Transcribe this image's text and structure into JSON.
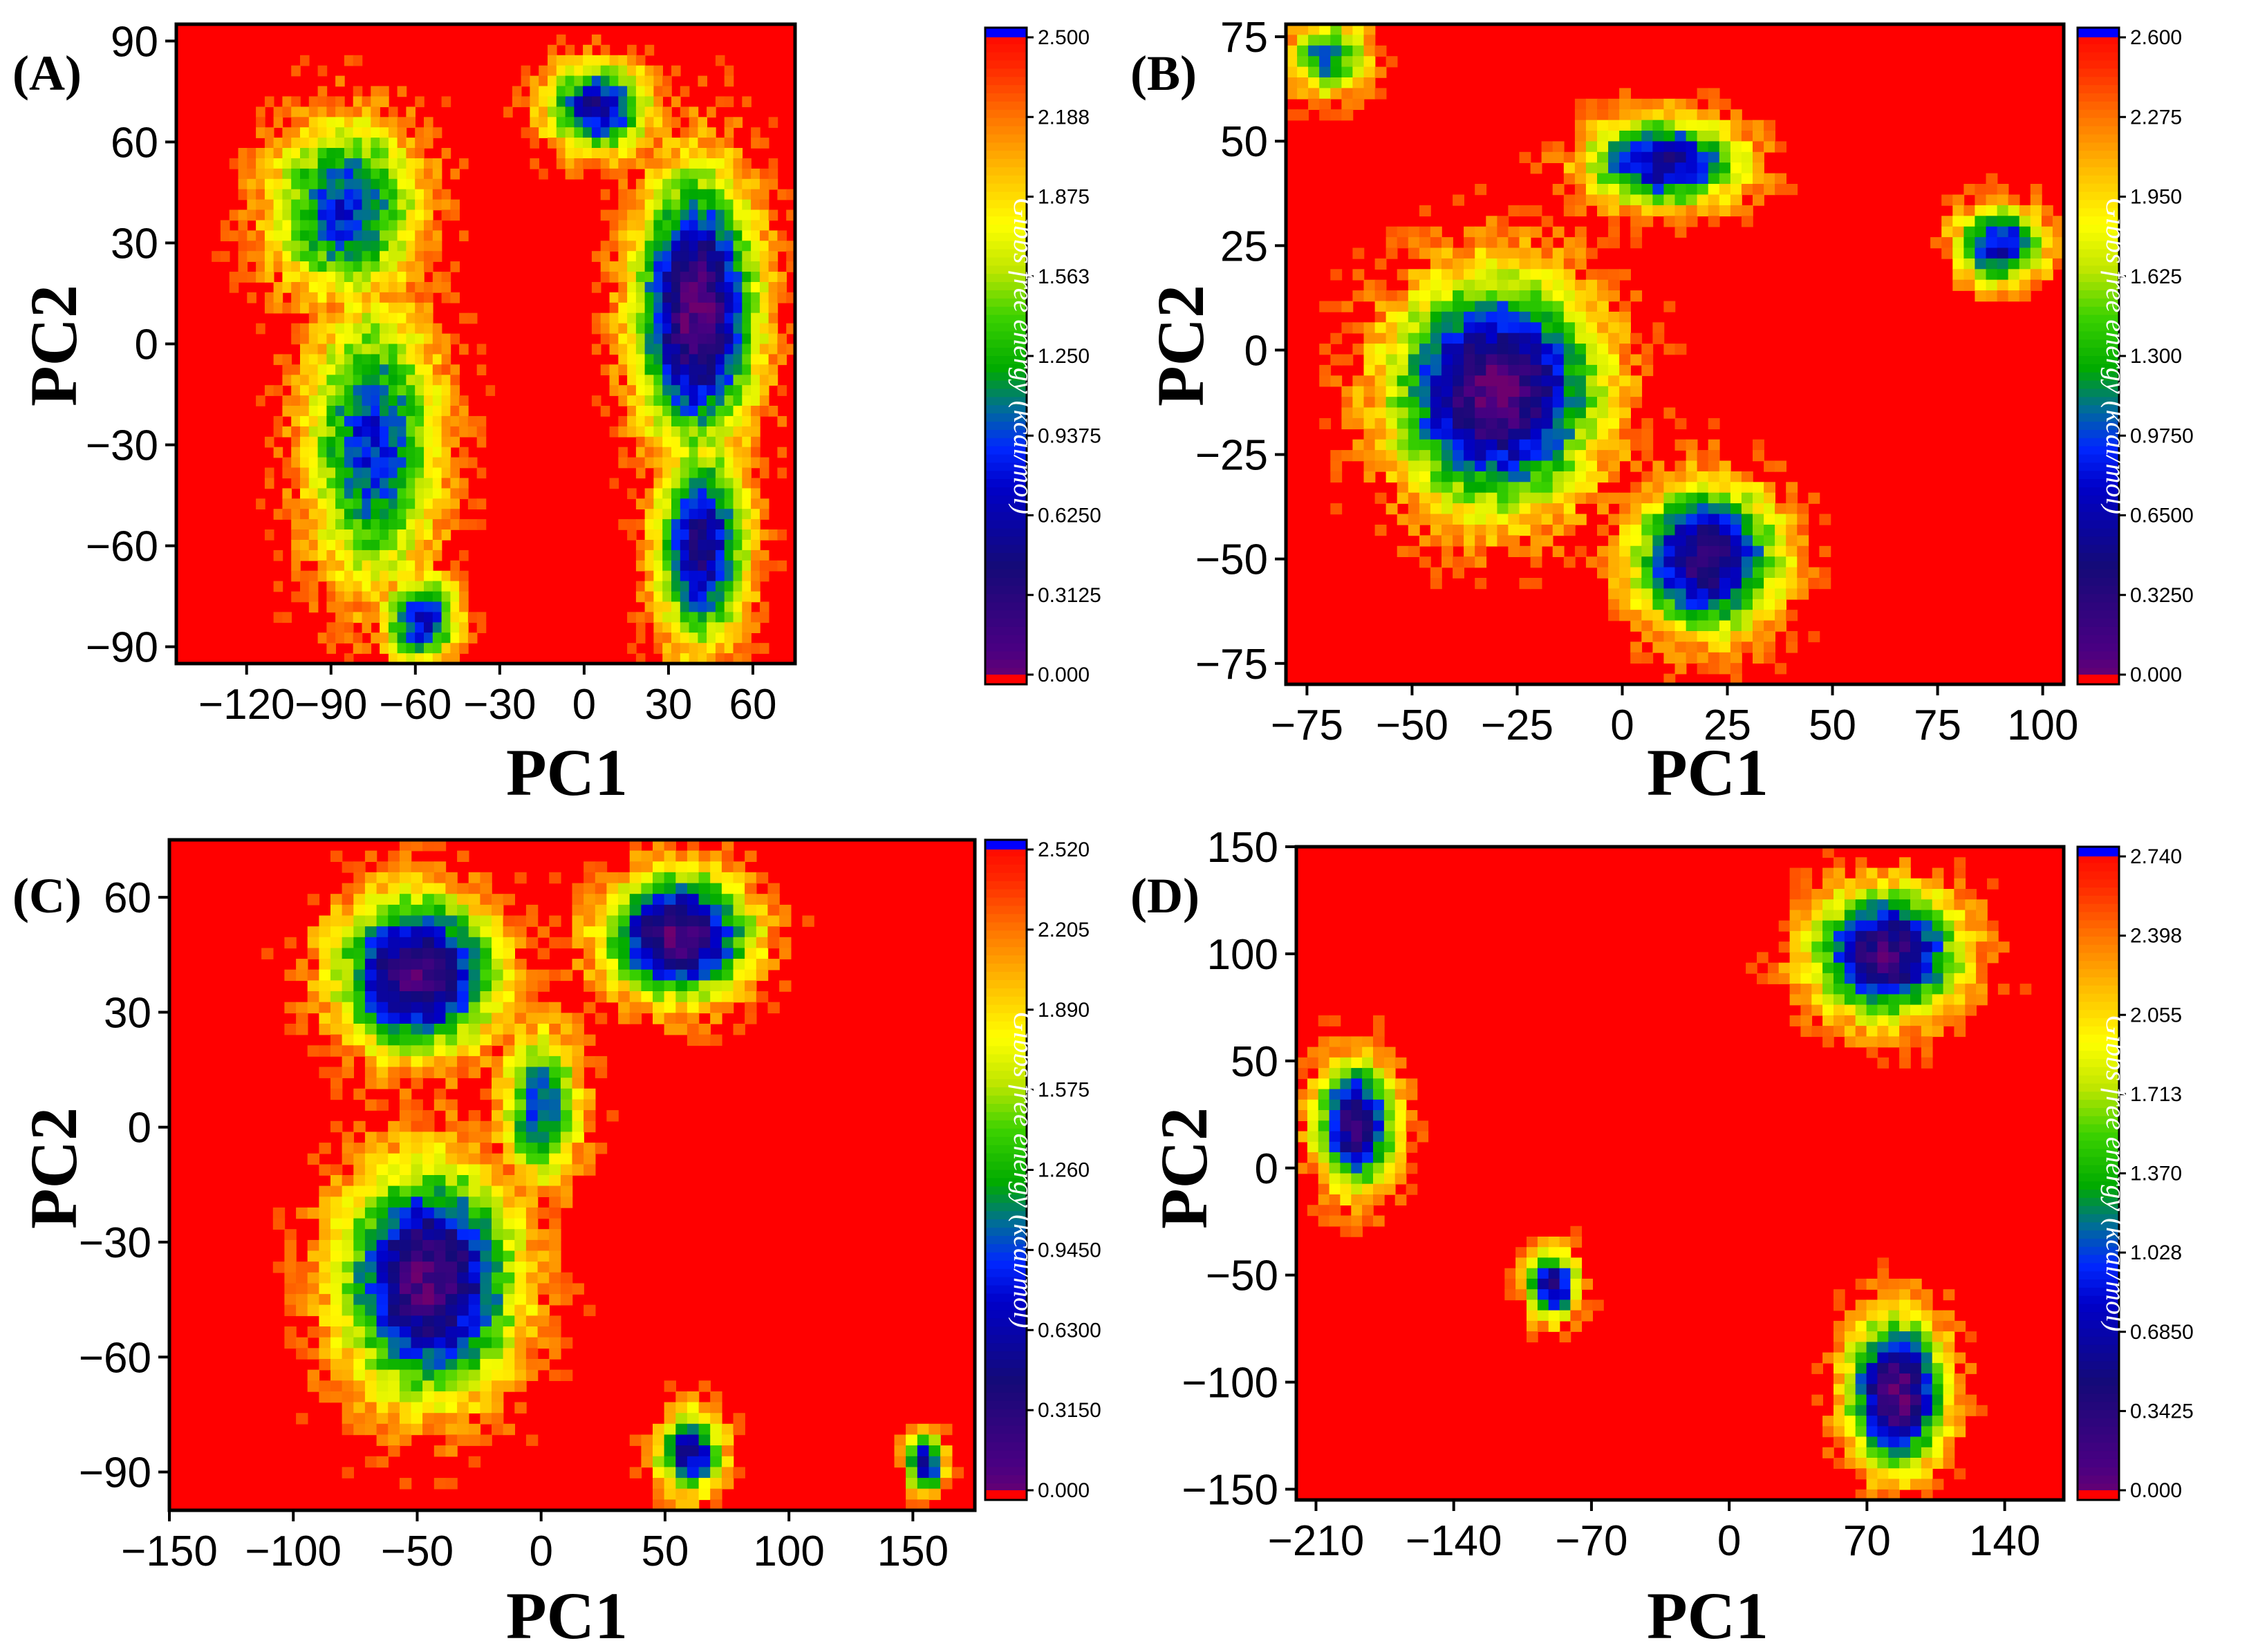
{
  "chart_data": [
    {
      "type": "heatmap",
      "panel": "(A)",
      "xlabel": "PC1",
      "ylabel": "PC2",
      "xlim": [
        -145,
        75
      ],
      "ylim": [
        -95,
        95
      ],
      "xticks": [
        -120,
        -90,
        -60,
        -30,
        0,
        30,
        60
      ],
      "yticks": [
        90,
        60,
        30,
        0,
        -30,
        -60,
        -90
      ],
      "colorbar": {
        "title": "Gibbs free energy (kcal/mol)",
        "ticks": [
          "2.500",
          "2.188",
          "1.875",
          "1.563",
          "1.250",
          "0.9375",
          "0.6250",
          "0.3125",
          "0.000"
        ],
        "range": [
          0.0,
          2.5
        ]
      },
      "minima": [
        {
          "x": 40,
          "y": 10,
          "depth": 0.05,
          "sx": 16,
          "sy": 30
        },
        {
          "x": 42,
          "y": -60,
          "depth": 0.45,
          "sx": 12,
          "sy": 22
        },
        {
          "x": 5,
          "y": 70,
          "depth": 0.6,
          "sx": 14,
          "sy": 10
        },
        {
          "x": -85,
          "y": 40,
          "depth": 0.9,
          "sx": 20,
          "sy": 20
        },
        {
          "x": -75,
          "y": -30,
          "depth": 0.9,
          "sx": 18,
          "sy": 32
        },
        {
          "x": -58,
          "y": -82,
          "depth": 0.75,
          "sx": 10,
          "sy": 10
        }
      ]
    },
    {
      "type": "heatmap",
      "panel": "(B)",
      "xlabel": "PC1",
      "ylabel": "PC2",
      "xlim": [
        -80,
        105
      ],
      "ylim": [
        -80,
        78
      ],
      "xticks": [
        -75,
        -50,
        -25,
        0,
        25,
        50,
        75,
        100
      ],
      "yticks": [
        75,
        50,
        25,
        0,
        -25,
        -50,
        -75
      ],
      "colorbar": {
        "title": "Gibbs free energy (kcal/mol)",
        "ticks": [
          "2.600",
          "2.275",
          "1.950",
          "1.625",
          "1.300",
          "0.9750",
          "0.6500",
          "0.3250",
          "0.000"
        ],
        "range": [
          0.0,
          2.6
        ]
      },
      "minima": [
        {
          "x": -30,
          "y": -10,
          "depth": 0.05,
          "sx": 18,
          "sy": 20
        },
        {
          "x": 20,
          "y": -50,
          "depth": 0.3,
          "sx": 13,
          "sy": 13
        },
        {
          "x": 10,
          "y": 45,
          "depth": 0.55,
          "sx": 14,
          "sy": 8
        },
        {
          "x": 90,
          "y": 25,
          "depth": 0.7,
          "sx": 8,
          "sy": 7
        },
        {
          "x": -70,
          "y": 70,
          "depth": 1.1,
          "sx": 7,
          "sy": 7
        }
      ]
    },
    {
      "type": "heatmap",
      "panel": "(C)",
      "xlabel": "PC1",
      "ylabel": "PC2",
      "xlim": [
        -150,
        175
      ],
      "ylim": [
        -100,
        75
      ],
      "xticks": [
        -150,
        -100,
        -50,
        0,
        50,
        100,
        150
      ],
      "yticks": [
        60,
        30,
        0,
        -30,
        -60,
        -90
      ],
      "colorbar": {
        "title": "Gibbs free energy (kcal/mol)",
        "ticks": [
          "2.520",
          "2.205",
          "1.890",
          "1.575",
          "1.260",
          "0.9450",
          "0.6300",
          "0.3150",
          "0.000"
        ],
        "range": [
          0.0,
          2.52
        ]
      },
      "minima": [
        {
          "x": -50,
          "y": 40,
          "depth": 0.15,
          "sx": 24,
          "sy": 15
        },
        {
          "x": 55,
          "y": 50,
          "depth": 0.1,
          "sx": 22,
          "sy": 12
        },
        {
          "x": -45,
          "y": -40,
          "depth": 0.1,
          "sx": 26,
          "sy": 22
        },
        {
          "x": 60,
          "y": -85,
          "depth": 0.6,
          "sx": 10,
          "sy": 8
        },
        {
          "x": 155,
          "y": -88,
          "depth": 0.6,
          "sx": 6,
          "sy": 6
        },
        {
          "x": 0,
          "y": 5,
          "depth": 1.0,
          "sx": 12,
          "sy": 15
        }
      ]
    },
    {
      "type": "heatmap",
      "panel": "(D)",
      "xlabel": "PC1",
      "ylabel": "PC2",
      "xlim": [
        -220,
        170
      ],
      "ylim": [
        -155,
        150
      ],
      "xticks": [
        -210,
        -140,
        -70,
        0,
        70,
        140
      ],
      "yticks": [
        150,
        100,
        50,
        0,
        -50,
        -100,
        -150
      ],
      "colorbar": {
        "title": "Gibbs free energy (kcal/mol)",
        "ticks": [
          "2.740",
          "2.398",
          "2.055",
          "1.713",
          "1.370",
          "1.028",
          "0.6850",
          "0.3425",
          "0.000"
        ],
        "range": [
          0.0,
          2.74
        ]
      },
      "minima": [
        {
          "x": 85,
          "y": -105,
          "depth": 0.05,
          "sx": 18,
          "sy": 26
        },
        {
          "x": 80,
          "y": 100,
          "depth": 0.2,
          "sx": 28,
          "sy": 22
        },
        {
          "x": -190,
          "y": 20,
          "depth": 0.3,
          "sx": 15,
          "sy": 22
        },
        {
          "x": -90,
          "y": -55,
          "depth": 0.5,
          "sx": 10,
          "sy": 12
        }
      ]
    }
  ]
}
